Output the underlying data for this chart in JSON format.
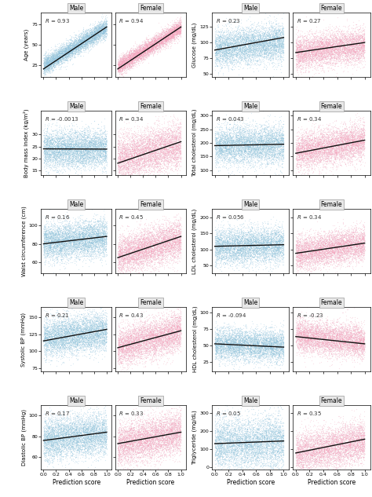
{
  "rows_left": [
    {
      "ylabel": "Age (years)",
      "ylim": [
        10,
        90
      ],
      "yticks": [
        25,
        50,
        75
      ],
      "R_male": 0.93,
      "R_female": 0.94,
      "slope_male": [
        20,
        72
      ],
      "slope_female": [
        20,
        72
      ],
      "mean_male": 48,
      "mean_female": 47,
      "spread_male": 15,
      "spread_female": 15
    },
    {
      "ylabel": "Body mass index (kg/m²)",
      "ylim": [
        13,
        40
      ],
      "yticks": [
        15,
        20,
        25,
        30
      ],
      "R_male": -0.0013,
      "R_female": 0.34,
      "slope_male": [
        24.0,
        23.9
      ],
      "slope_female": [
        18,
        27
      ],
      "mean_male": 24,
      "mean_female": 23,
      "spread_male": 4,
      "spread_female": 5
    },
    {
      "ylabel": "Waist circumference (cm)",
      "ylim": [
        48,
        118
      ],
      "yticks": [
        60,
        80,
        100
      ],
      "R_male": 0.16,
      "R_female": 0.45,
      "slope_male": [
        80,
        88
      ],
      "slope_female": [
        65,
        88
      ],
      "mean_male": 84,
      "mean_female": 76,
      "spread_male": 10,
      "spread_female": 12
    },
    {
      "ylabel": "Systolic BP (mmHg)",
      "ylim": [
        70,
        165
      ],
      "yticks": [
        75,
        100,
        125,
        150
      ],
      "R_male": 0.21,
      "R_female": 0.43,
      "slope_male": [
        115,
        132
      ],
      "slope_female": [
        105,
        130
      ],
      "mean_male": 124,
      "mean_female": 118,
      "spread_male": 14,
      "spread_female": 16
    },
    {
      "ylabel": "Diastolic BP (mmHg)",
      "ylim": [
        48,
        110
      ],
      "yticks": [
        60,
        80,
        100
      ],
      "R_male": 0.17,
      "R_female": 0.33,
      "slope_male": [
        76,
        84
      ],
      "slope_female": [
        73,
        84
      ],
      "mean_male": 80,
      "mean_female": 78,
      "spread_male": 10,
      "spread_female": 11
    }
  ],
  "rows_right": [
    {
      "ylabel": "Glucose (mg/dL)",
      "ylim": [
        45,
        148
      ],
      "yticks": [
        50,
        75,
        100,
        125
      ],
      "R_male": 0.23,
      "R_female": 0.27,
      "slope_male": [
        88,
        108
      ],
      "slope_female": [
        84,
        100
      ],
      "mean_male": 96,
      "mean_female": 90,
      "spread_male": 15,
      "spread_female": 14
    },
    {
      "ylabel": "Total cholesterol (mg/dL)",
      "ylim": [
        82,
        318
      ],
      "yticks": [
        100,
        150,
        200,
        250,
        300
      ],
      "R_male": 0.043,
      "R_female": 0.34,
      "slope_male": [
        190,
        195
      ],
      "slope_female": [
        162,
        210
      ],
      "mean_male": 192,
      "mean_female": 188,
      "spread_male": 35,
      "spread_female": 36
    },
    {
      "ylabel": "LDL cholesterol (mg/dL)",
      "ylim": [
        25,
        228
      ],
      "yticks": [
        50,
        100,
        150,
        200
      ],
      "R_male": 0.056,
      "R_female": 0.34,
      "slope_male": [
        110,
        115
      ],
      "slope_female": [
        88,
        120
      ],
      "mean_male": 112,
      "mean_female": 104,
      "spread_male": 28,
      "spread_female": 28
    },
    {
      "ylabel": "HDL cholesterol (mg/dL)",
      "ylim": [
        10,
        108
      ],
      "yticks": [
        25,
        50,
        75,
        100
      ],
      "R_male": -0.094,
      "R_female": -0.23,
      "slope_male": [
        52,
        47
      ],
      "slope_female": [
        63,
        52
      ],
      "mean_male": 50,
      "mean_female": 60,
      "spread_male": 12,
      "spread_female": 13
    },
    {
      "ylabel": "Triglyceride (mg/dL)",
      "ylim": [
        -15,
        345
      ],
      "yticks": [
        0,
        100,
        200,
        300
      ],
      "R_male": 0.05,
      "R_female": 0.35,
      "slope_male": [
        130,
        145
      ],
      "slope_female": [
        78,
        155
      ],
      "mean_male": 135,
      "mean_female": 108,
      "spread_male": 72,
      "spread_female": 62
    }
  ],
  "male_color": "#92C5DE",
  "female_color": "#F4A6C0",
  "line_color": "#111111",
  "n_points": 5000,
  "xlabel": "Prediction score",
  "bg_color": "#ffffff",
  "title_box_color": "#e8e8e8",
  "xticks": [
    0.0,
    0.2,
    0.4,
    0.6,
    0.8,
    1.0
  ],
  "xlim": [
    -0.04,
    1.08
  ]
}
